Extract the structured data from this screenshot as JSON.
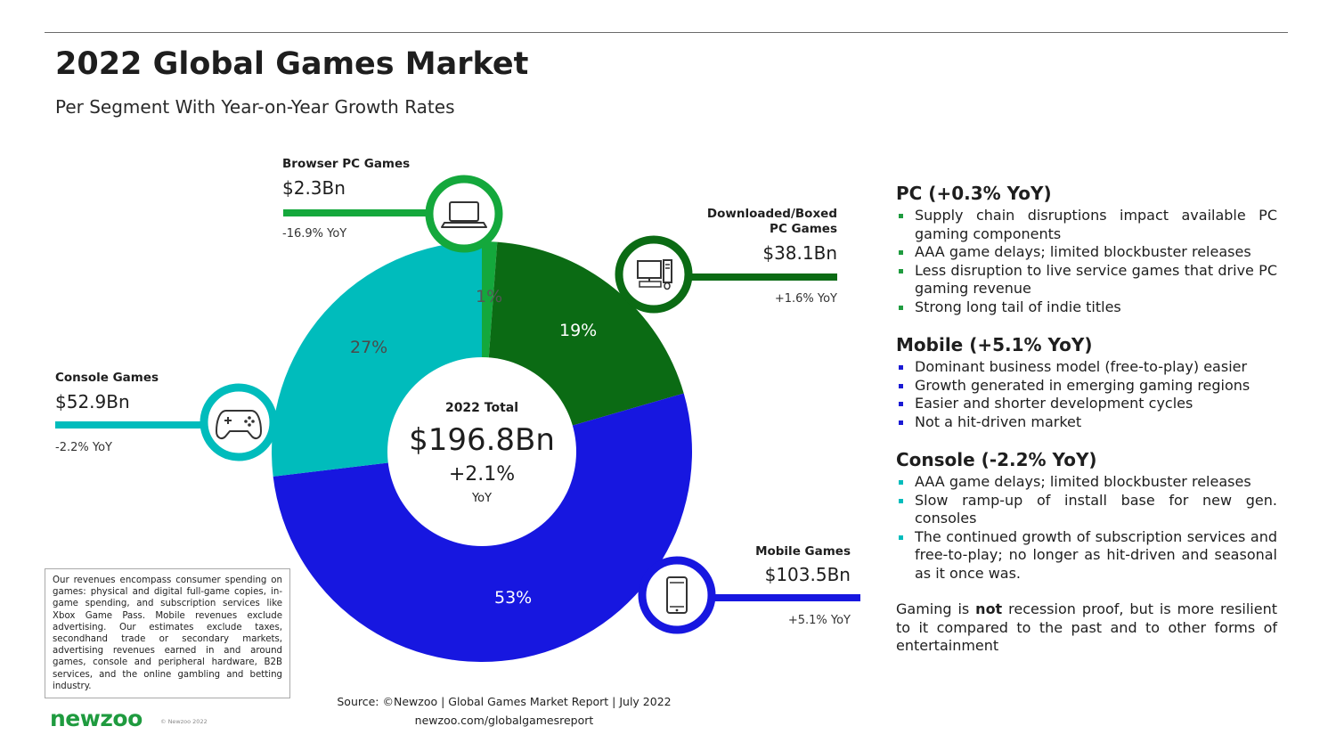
{
  "header": {
    "title": "2022 Global Games Market",
    "subtitle": "Per Segment With Year-on-Year Growth Rates"
  },
  "chart_data": {
    "type": "pie",
    "variant": "donut",
    "center": {
      "label": "2022 Total",
      "value": "$196.8Bn",
      "growth": "+2.1%",
      "growth_unit": "YoY"
    },
    "segments": [
      {
        "key": "browser",
        "name": "Browser PC Games",
        "value_label": "$2.3Bn",
        "value_bn": 2.3,
        "yoy": "-16.9% YoY",
        "share_label": "1%",
        "color": "#14a83c",
        "icon": "laptop-icon"
      },
      {
        "key": "downloaded",
        "name_line1": "Downloaded/Boxed",
        "name_line2": "PC Games",
        "value_label": "$38.1Bn",
        "value_bn": 38.1,
        "yoy": "+1.6% YoY",
        "share_label": "19%",
        "color": "#0b6b14",
        "icon": "desktop-pc-icon"
      },
      {
        "key": "mobile",
        "name": "Mobile Games",
        "value_label": "$103.5Bn",
        "value_bn": 103.5,
        "yoy": "+5.1% YoY",
        "share_label": "53%",
        "color": "#1717e0",
        "icon": "smartphone-icon"
      },
      {
        "key": "console",
        "name": "Console Games",
        "value_label": "$52.9Bn",
        "value_bn": 52.9,
        "yoy": "-2.2% YoY",
        "share_label": "27%",
        "color": "#00bcbc",
        "icon": "gamepad-icon"
      }
    ]
  },
  "notes": {
    "pc": {
      "title": "PC (+0.3% YoY)",
      "bullet_color": "#1f9b3f",
      "bullets": [
        "Supply chain disruptions impact available PC gaming components",
        "AAA game delays; limited blockbuster releases",
        "Less disruption to live service games that drive PC gaming revenue",
        "Strong long tail of indie titles"
      ]
    },
    "mobile": {
      "title": "Mobile (+5.1% YoY)",
      "bullet_color": "#1a1ad4",
      "bullets": [
        "Dominant business model (free-to-play) easier",
        "Growth generated in emerging gaming regions",
        "Easier and shorter development cycles",
        "Not a hit-driven market"
      ]
    },
    "console": {
      "title": "Console (-2.2% YoY)",
      "bullet_color": "#00bcbc",
      "bullets": [
        "AAA game delays; limited blockbuster releases",
        "Slow ramp-up of install base for new gen. consoles",
        "The continued growth of subscription services and free-to-play; no longer as hit-driven and seasonal as it once was."
      ]
    },
    "closing_pre": "Gaming is ",
    "closing_bold": "not",
    "closing_post": " recession proof, but is more resilient to it compared to the past and to other forms of entertainment"
  },
  "disclaimer": "Our revenues encompass consumer spending on games: physical and digital full-game copies, in-game spending, and subscription services like Xbox Game Pass. Mobile revenues exclude advertising. Our estimates exclude taxes, secondhand trade or secondary markets, advertising revenues earned in and around games, console and peripheral hardware, B2B services, and the online gambling and betting industry.",
  "footer": {
    "source": "Source: ©Newzoo | Global Games Market Report | July 2022",
    "url": "newzoo.com/globalgamesreport",
    "logo": "newzoo",
    "copyright": "© Newzoo 2022"
  }
}
